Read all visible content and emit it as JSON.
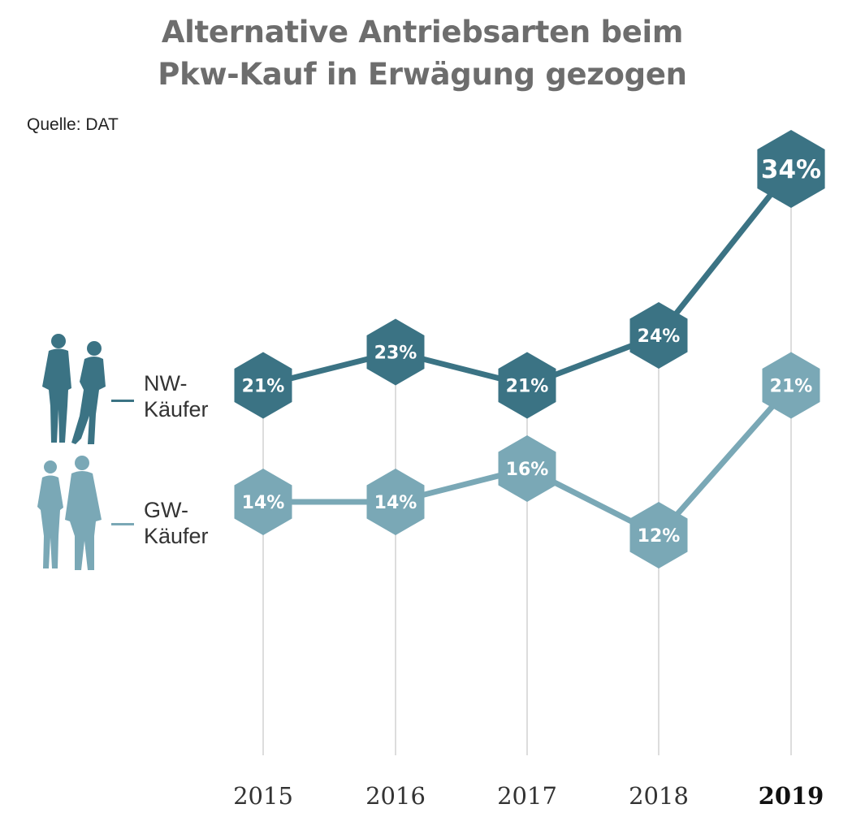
{
  "title_line1": "Alternative Antriebsarten beim",
  "title_line2": "Pkw-Kauf in Erwägung gezogen",
  "source": "Quelle: DAT",
  "colors": {
    "nw": "#3b7384",
    "gw": "#7aa8b6",
    "gridline": "#dddddd",
    "title": "#6d6d6d"
  },
  "legend": [
    {
      "line1": "NW-",
      "line2": "Käufer",
      "icon": "couple-silhouette-icon-dark"
    },
    {
      "line1": "GW-",
      "line2": "Käufer",
      "icon": "couple-silhouette-icon-light"
    }
  ],
  "chart_data": {
    "type": "line",
    "x": [
      "2015",
      "2016",
      "2017",
      "2018",
      "2019"
    ],
    "highlight_x": "2019",
    "series": [
      {
        "name": "NW-Käufer",
        "values": [
          21,
          23,
          21,
          24,
          34
        ],
        "labels": [
          "21%",
          "23%",
          "21%",
          "24%",
          "34%"
        ]
      },
      {
        "name": "GW-Käufer",
        "values": [
          14,
          14,
          16,
          12,
          21
        ],
        "labels": [
          "14%",
          "14%",
          "16%",
          "12%",
          "21%"
        ]
      }
    ],
    "ylim": [
      0,
      40
    ],
    "marker": "hexagon",
    "grid": "vertical"
  }
}
